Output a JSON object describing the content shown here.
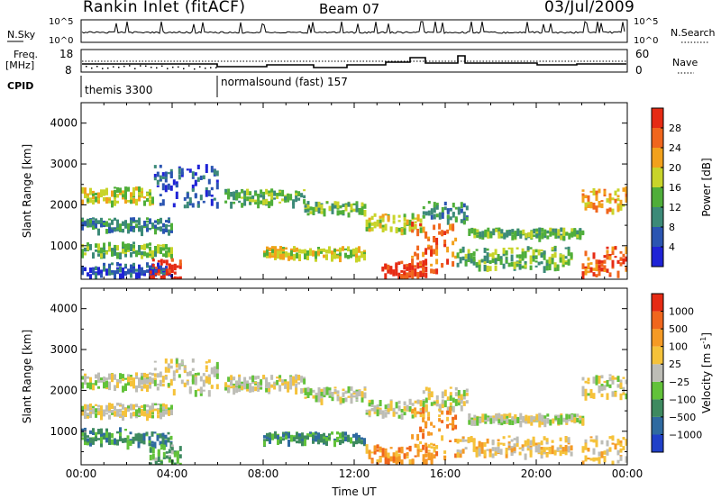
{
  "header": {
    "title": "Rankin Inlet (fitACF)",
    "beam": "Beam 07",
    "date": "03/Jul/2009"
  },
  "top_panels": {
    "nsky_label": "N.Sky",
    "nsky_ticks": [
      "10^5",
      "10^0"
    ],
    "nsearch_label": "N.Search",
    "freq_label_1": "Freq.",
    "freq_label_2": "[MHz]",
    "freq_ticks": [
      "18",
      "8"
    ],
    "nave_ticks": [
      "60",
      "0"
    ],
    "nave_label": "Nave",
    "cpid_label": "CPID",
    "cpid_entries": [
      "themis 3300",
      "normalsound (fast) 157"
    ]
  },
  "chart_data": [
    {
      "type": "heatmap",
      "title": "",
      "xlabel": "Time UT",
      "ylabel": "Slant Range [km]",
      "x_ticks": [
        "00:00",
        "04:00",
        "08:00",
        "12:00",
        "16:00",
        "20:00",
        "00:00"
      ],
      "xlim_hours": [
        0,
        24
      ],
      "y_ticks": [
        1000,
        2000,
        3000,
        4000
      ],
      "ylim": [
        180,
        4500
      ],
      "colorbar": {
        "label": "Power [dB]",
        "ticks": [
          "4",
          "8",
          "12",
          "16",
          "20",
          "24",
          "28"
        ],
        "colors": [
          "#1f23d6",
          "#2b55b2",
          "#3c8a78",
          "#4fae3a",
          "#c8d42a",
          "#f2a11c",
          "#f0661d",
          "#e62b14"
        ]
      },
      "echo_bands": [
        {
          "t": [
            0.0,
            3.2
          ],
          "range": [
            2100,
            2450
          ],
          "level": 4
        },
        {
          "t": [
            3.2,
            6.0
          ],
          "range": [
            2000,
            3000
          ],
          "level": 1
        },
        {
          "t": [
            6.3,
            9.8
          ],
          "range": [
            2050,
            2400
          ],
          "level": 3
        },
        {
          "t": [
            9.8,
            12.5
          ],
          "range": [
            1800,
            2100
          ],
          "level": 3
        },
        {
          "t": [
            12.5,
            15.0
          ],
          "range": [
            1400,
            1800
          ],
          "level": 4
        },
        {
          "t": [
            15.0,
            17.0
          ],
          "range": [
            1600,
            2100
          ],
          "level": 2
        },
        {
          "t": [
            17.0,
            22.0
          ],
          "range": [
            1250,
            1450
          ],
          "level": 3
        },
        {
          "t": [
            22.0,
            24.0
          ],
          "range": [
            1900,
            2500
          ],
          "level": 5
        },
        {
          "t": [
            0.0,
            4.0
          ],
          "range": [
            1400,
            1700
          ],
          "level": 2
        },
        {
          "t": [
            0.0,
            4.0
          ],
          "range": [
            800,
            1100
          ],
          "level": 3
        },
        {
          "t": [
            0.0,
            4.0
          ],
          "range": [
            300,
            600
          ],
          "level": 1
        },
        {
          "t": [
            3.0,
            4.4
          ],
          "range": [
            200,
            700
          ],
          "level": 7
        },
        {
          "t": [
            8.0,
            12.5
          ],
          "range": [
            750,
            1000
          ],
          "level": 4
        },
        {
          "t": [
            13.2,
            15.2
          ],
          "range": [
            300,
            650
          ],
          "level": 7
        },
        {
          "t": [
            14.5,
            16.5
          ],
          "range": [
            400,
            1600
          ],
          "level": 6
        },
        {
          "t": [
            16.5,
            21.5
          ],
          "range": [
            500,
            1000
          ],
          "level": 3
        },
        {
          "t": [
            22.0,
            24.0
          ],
          "range": [
            300,
            1000
          ],
          "level": 6
        }
      ]
    },
    {
      "type": "heatmap",
      "title": "",
      "xlabel": "Time UT",
      "ylabel": "Slant Range [km]",
      "x_ticks": [
        "00:00",
        "04:00",
        "08:00",
        "12:00",
        "16:00",
        "20:00",
        "00:00"
      ],
      "xlim_hours": [
        0,
        24
      ],
      "y_ticks": [
        1000,
        2000,
        3000,
        4000
      ],
      "ylim": [
        180,
        4500
      ],
      "colorbar": {
        "label": "Velocity [m s",
        "label_superscript": "-1",
        "label_close": "]",
        "ticks": [
          "1000",
          "500",
          "100",
          "25",
          "−25",
          "−100",
          "−500",
          "−1000"
        ],
        "colors": [
          "#2040c8",
          "#2f6aa0",
          "#3e8a60",
          "#62c23a",
          "#bdbdb6",
          "#f5c23a",
          "#f59a25",
          "#f0661d",
          "#e62b14"
        ]
      },
      "echo_bands": [
        {
          "t": [
            0.0,
            3.2
          ],
          "range": [
            2100,
            2450
          ],
          "level": 4
        },
        {
          "t": [
            3.2,
            6.0
          ],
          "range": [
            2000,
            2800
          ],
          "level": 4
        },
        {
          "t": [
            6.3,
            9.8
          ],
          "range": [
            2050,
            2400
          ],
          "level": 4
        },
        {
          "t": [
            9.8,
            12.5
          ],
          "range": [
            1800,
            2100
          ],
          "level": 4
        },
        {
          "t": [
            12.5,
            15.0
          ],
          "range": [
            1400,
            1800
          ],
          "level": 4
        },
        {
          "t": [
            15.0,
            17.0
          ],
          "range": [
            1600,
            2100
          ],
          "level": 4
        },
        {
          "t": [
            17.0,
            22.0
          ],
          "range": [
            1250,
            1450
          ],
          "level": 4
        },
        {
          "t": [
            22.0,
            24.0
          ],
          "range": [
            1900,
            2400
          ],
          "level": 4
        },
        {
          "t": [
            0.0,
            4.0
          ],
          "range": [
            1400,
            1700
          ],
          "level": 4
        },
        {
          "t": [
            0.0,
            2.0
          ],
          "range": [
            750,
            1100
          ],
          "level": 2
        },
        {
          "t": [
            2.0,
            4.0
          ],
          "range": [
            700,
            1000
          ],
          "level": 2
        },
        {
          "t": [
            3.0,
            4.4
          ],
          "range": [
            200,
            700
          ],
          "level": 3
        },
        {
          "t": [
            8.0,
            12.5
          ],
          "range": [
            750,
            1000
          ],
          "level": 2
        },
        {
          "t": [
            12.5,
            15.5
          ],
          "range": [
            300,
            700
          ],
          "level": 6
        },
        {
          "t": [
            14.5,
            16.5
          ],
          "range": [
            400,
            1600
          ],
          "level": 6
        },
        {
          "t": [
            16.5,
            21.5
          ],
          "range": [
            450,
            900
          ],
          "level": 5
        },
        {
          "t": [
            22.0,
            24.0
          ],
          "range": [
            250,
            900
          ],
          "level": 5
        }
      ]
    }
  ]
}
